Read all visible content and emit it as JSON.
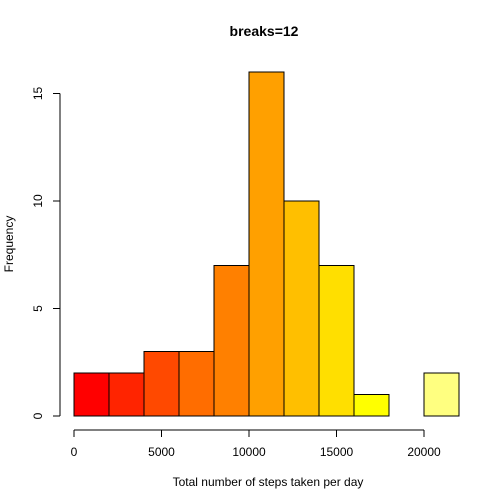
{
  "chart_data": {
    "type": "bar",
    "title": "breaks=12",
    "xlabel": "Total number of steps taken per day",
    "ylabel": "Frequency",
    "bins": [
      {
        "start": 0,
        "end": 2000,
        "count": 2,
        "color": "#FF0000"
      },
      {
        "start": 2000,
        "end": 4000,
        "count": 2,
        "color": "#FF2400"
      },
      {
        "start": 4000,
        "end": 6000,
        "count": 3,
        "color": "#FF4900"
      },
      {
        "start": 6000,
        "end": 8000,
        "count": 3,
        "color": "#FF6D00"
      },
      {
        "start": 8000,
        "end": 10000,
        "count": 7,
        "color": "#FF8000"
      },
      {
        "start": 10000,
        "end": 12000,
        "count": 16,
        "color": "#FFA000"
      },
      {
        "start": 12000,
        "end": 14000,
        "count": 10,
        "color": "#FFBF00"
      },
      {
        "start": 14000,
        "end": 16000,
        "count": 7,
        "color": "#FFDF00"
      },
      {
        "start": 16000,
        "end": 18000,
        "count": 1,
        "color": "#FFFF00"
      },
      {
        "start": 18000,
        "end": 20000,
        "count": 0,
        "color": "#FFFF40"
      },
      {
        "start": 20000,
        "end": 22000,
        "count": 2,
        "color": "#FFFF80"
      }
    ],
    "xlim": [
      0,
      22000
    ],
    "ylim": [
      0,
      16
    ],
    "x_ticks": [
      0,
      5000,
      10000,
      15000,
      20000
    ],
    "y_ticks": [
      0,
      5,
      10,
      15
    ],
    "grid": false,
    "legend": "none"
  }
}
